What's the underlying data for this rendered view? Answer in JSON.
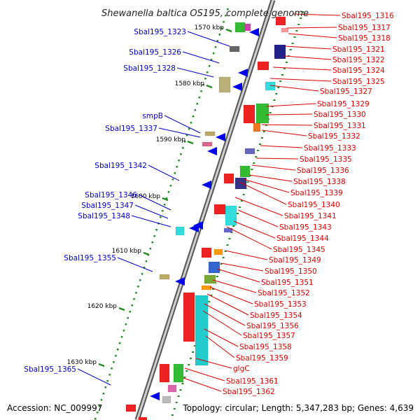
{
  "title": "Shewanella baltica OS195, complete genome",
  "accession": "Accession: NC_009997",
  "summary": "Topology: circular; Length: 5,347,283 bp; Genes: 4,639",
  "colors": {
    "left_label": "#0000cc",
    "right_label": "#dd0000",
    "backbone": "#888888",
    "tick": "#228b22"
  },
  "kbp_marks": [
    "1570 kbp",
    "1580 kbp",
    "1590 kbp",
    "1600 kbp",
    "1610 kbp",
    "1620 kbp",
    "1630 kbp"
  ],
  "left_labels": [
    "Sbal195_1323",
    "Sbal195_1326",
    "Sbal195_1328",
    "smpB",
    "Sbal195_1337",
    "Sbal195_1342",
    "Sbal195_1346",
    "Sbal195_1347",
    "Sbal195_1348",
    "Sbal195_1355",
    "Sbal195_1365"
  ],
  "right_labels": [
    "Sbal195_1316",
    "Sbal195_1317",
    "Sbal195_1318",
    "Sbal195_1321",
    "Sbal195_1322",
    "Sbal195_1324",
    "Sbal195_1325",
    "Sbal195_1327",
    "Sbal195_1329",
    "Sbal195_1330",
    "Sbal195_1331",
    "Sbal195_1332",
    "Sbal195_1333",
    "Sbal195_1335",
    "Sbal195_1336",
    "Sbal195_1338",
    "Sbal195_1339",
    "Sbal195_1340",
    "Sbal195_1341",
    "Sbal195_1343",
    "Sbal195_1344",
    "Sbal195_1345",
    "Sbal195_1349",
    "Sbal195_1350",
    "Sbal195_1351",
    "Sbal195_1352",
    "Sbal195_1353",
    "Sbal195_1354",
    "Sbal195_1356",
    "Sbal195_1357",
    "Sbal195_1358",
    "Sbal195_1359",
    "glgC",
    "Sbal195_1361",
    "Sbal195_1362"
  ]
}
